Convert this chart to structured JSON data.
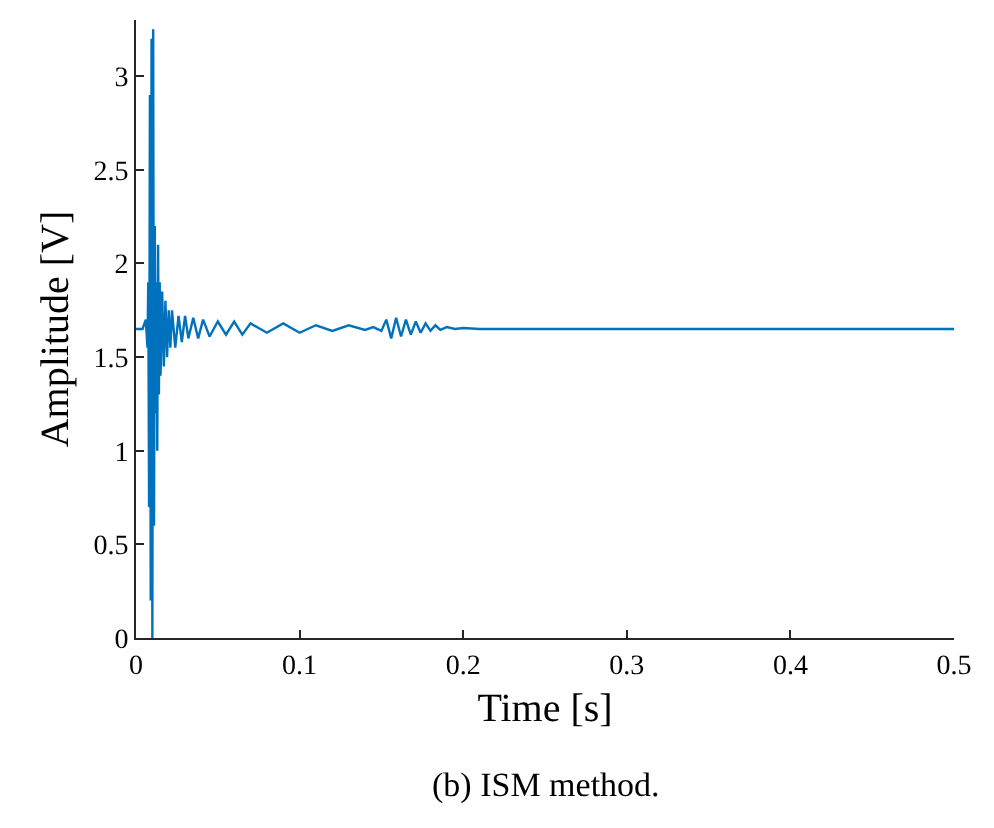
{
  "chart_data": {
    "type": "line",
    "xlabel": "Time [s]",
    "ylabel": "Amplitude [V]",
    "annotations": [
      "(b) ISM method."
    ],
    "x": [
      0,
      0.004,
      0.006,
      0.007,
      0.0075,
      0.008,
      0.0085,
      0.009,
      0.0095,
      0.01,
      0.0105,
      0.011,
      0.0115,
      0.012,
      0.0125,
      0.013,
      0.0135,
      0.014,
      0.0145,
      0.015,
      0.016,
      0.017,
      0.018,
      0.019,
      0.02,
      0.021,
      0.022,
      0.024,
      0.026,
      0.028,
      0.03,
      0.032,
      0.035,
      0.038,
      0.041,
      0.045,
      0.05,
      0.055,
      0.06,
      0.065,
      0.07,
      0.08,
      0.09,
      0.1,
      0.11,
      0.12,
      0.13,
      0.14,
      0.145,
      0.15,
      0.153,
      0.156,
      0.159,
      0.162,
      0.165,
      0.168,
      0.171,
      0.174,
      0.177,
      0.18,
      0.183,
      0.186,
      0.19,
      0.195,
      0.2,
      0.21,
      0.22,
      0.25,
      0.3,
      0.35,
      0.4,
      0.45,
      0.5
    ],
    "series": [
      {
        "color": "#0072bd",
        "values": [
          1.65,
          1.65,
          1.7,
          1.55,
          1.9,
          0.7,
          2.9,
          0.2,
          3.2,
          0,
          3.25,
          0.6,
          2.2,
          1.2,
          1.9,
          1.0,
          2.1,
          1.3,
          1.9,
          1.4,
          1.85,
          1.45,
          1.8,
          1.5,
          1.75,
          1.55,
          1.75,
          1.55,
          1.72,
          1.58,
          1.72,
          1.6,
          1.71,
          1.6,
          1.7,
          1.61,
          1.69,
          1.62,
          1.69,
          1.62,
          1.68,
          1.63,
          1.68,
          1.63,
          1.67,
          1.64,
          1.67,
          1.645,
          1.66,
          1.64,
          1.7,
          1.6,
          1.71,
          1.61,
          1.7,
          1.62,
          1.69,
          1.63,
          1.68,
          1.64,
          1.67,
          1.645,
          1.66,
          1.65,
          1.655,
          1.65,
          1.65,
          1.65,
          1.65,
          1.65,
          1.65,
          1.65,
          1.65
        ]
      }
    ],
    "xlim": [
      0,
      0.5
    ],
    "xticks": [
      0,
      0.1,
      0.2,
      0.3,
      0.4,
      0.5
    ],
    "ylim": [
      0,
      3.3
    ],
    "yticks": [
      0,
      0.5,
      1,
      1.5,
      2,
      2.5,
      3
    ],
    "grid": false,
    "legend": false,
    "marker": "none",
    "line_style": "solid"
  }
}
